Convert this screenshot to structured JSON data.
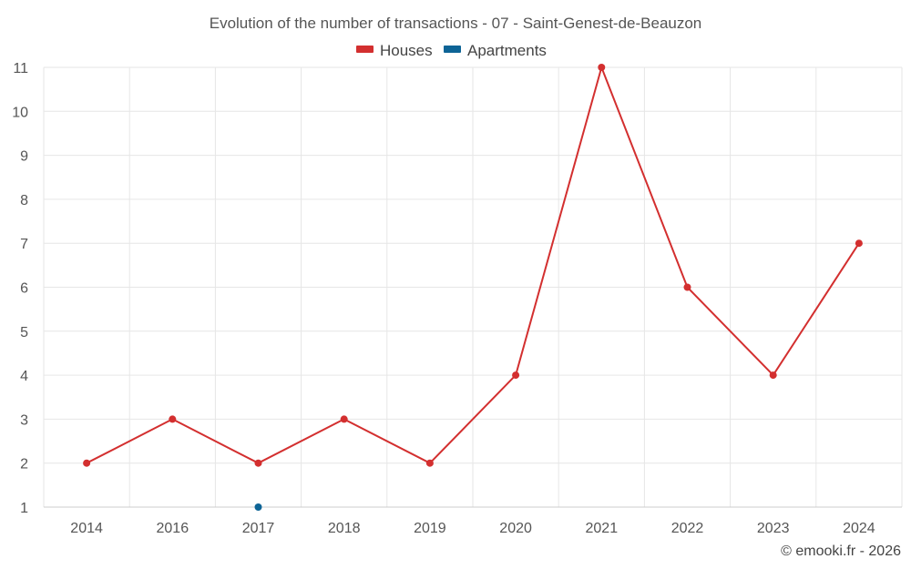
{
  "chart_data": {
    "type": "line",
    "title": "Evolution of the number of transactions - 07 - Saint-Genest-de-Beauzon",
    "categories": [
      "2014",
      "2016",
      "2017",
      "2018",
      "2019",
      "2020",
      "2021",
      "2022",
      "2023",
      "2024"
    ],
    "ylim": [
      1,
      11
    ],
    "yticks": [
      1,
      2,
      3,
      4,
      5,
      6,
      7,
      8,
      9,
      10,
      11
    ],
    "grid": true,
    "legend_position": "top-center",
    "series": [
      {
        "name": "Houses",
        "color": "#d32f2f",
        "values": [
          2,
          3,
          2,
          3,
          2,
          4,
          11,
          6,
          4,
          7
        ]
      },
      {
        "name": "Apartments",
        "color": "#0d6496",
        "values": [
          null,
          null,
          1,
          null,
          null,
          null,
          null,
          null,
          null,
          null
        ]
      }
    ],
    "credit": "© emooki.fr - 2026"
  }
}
